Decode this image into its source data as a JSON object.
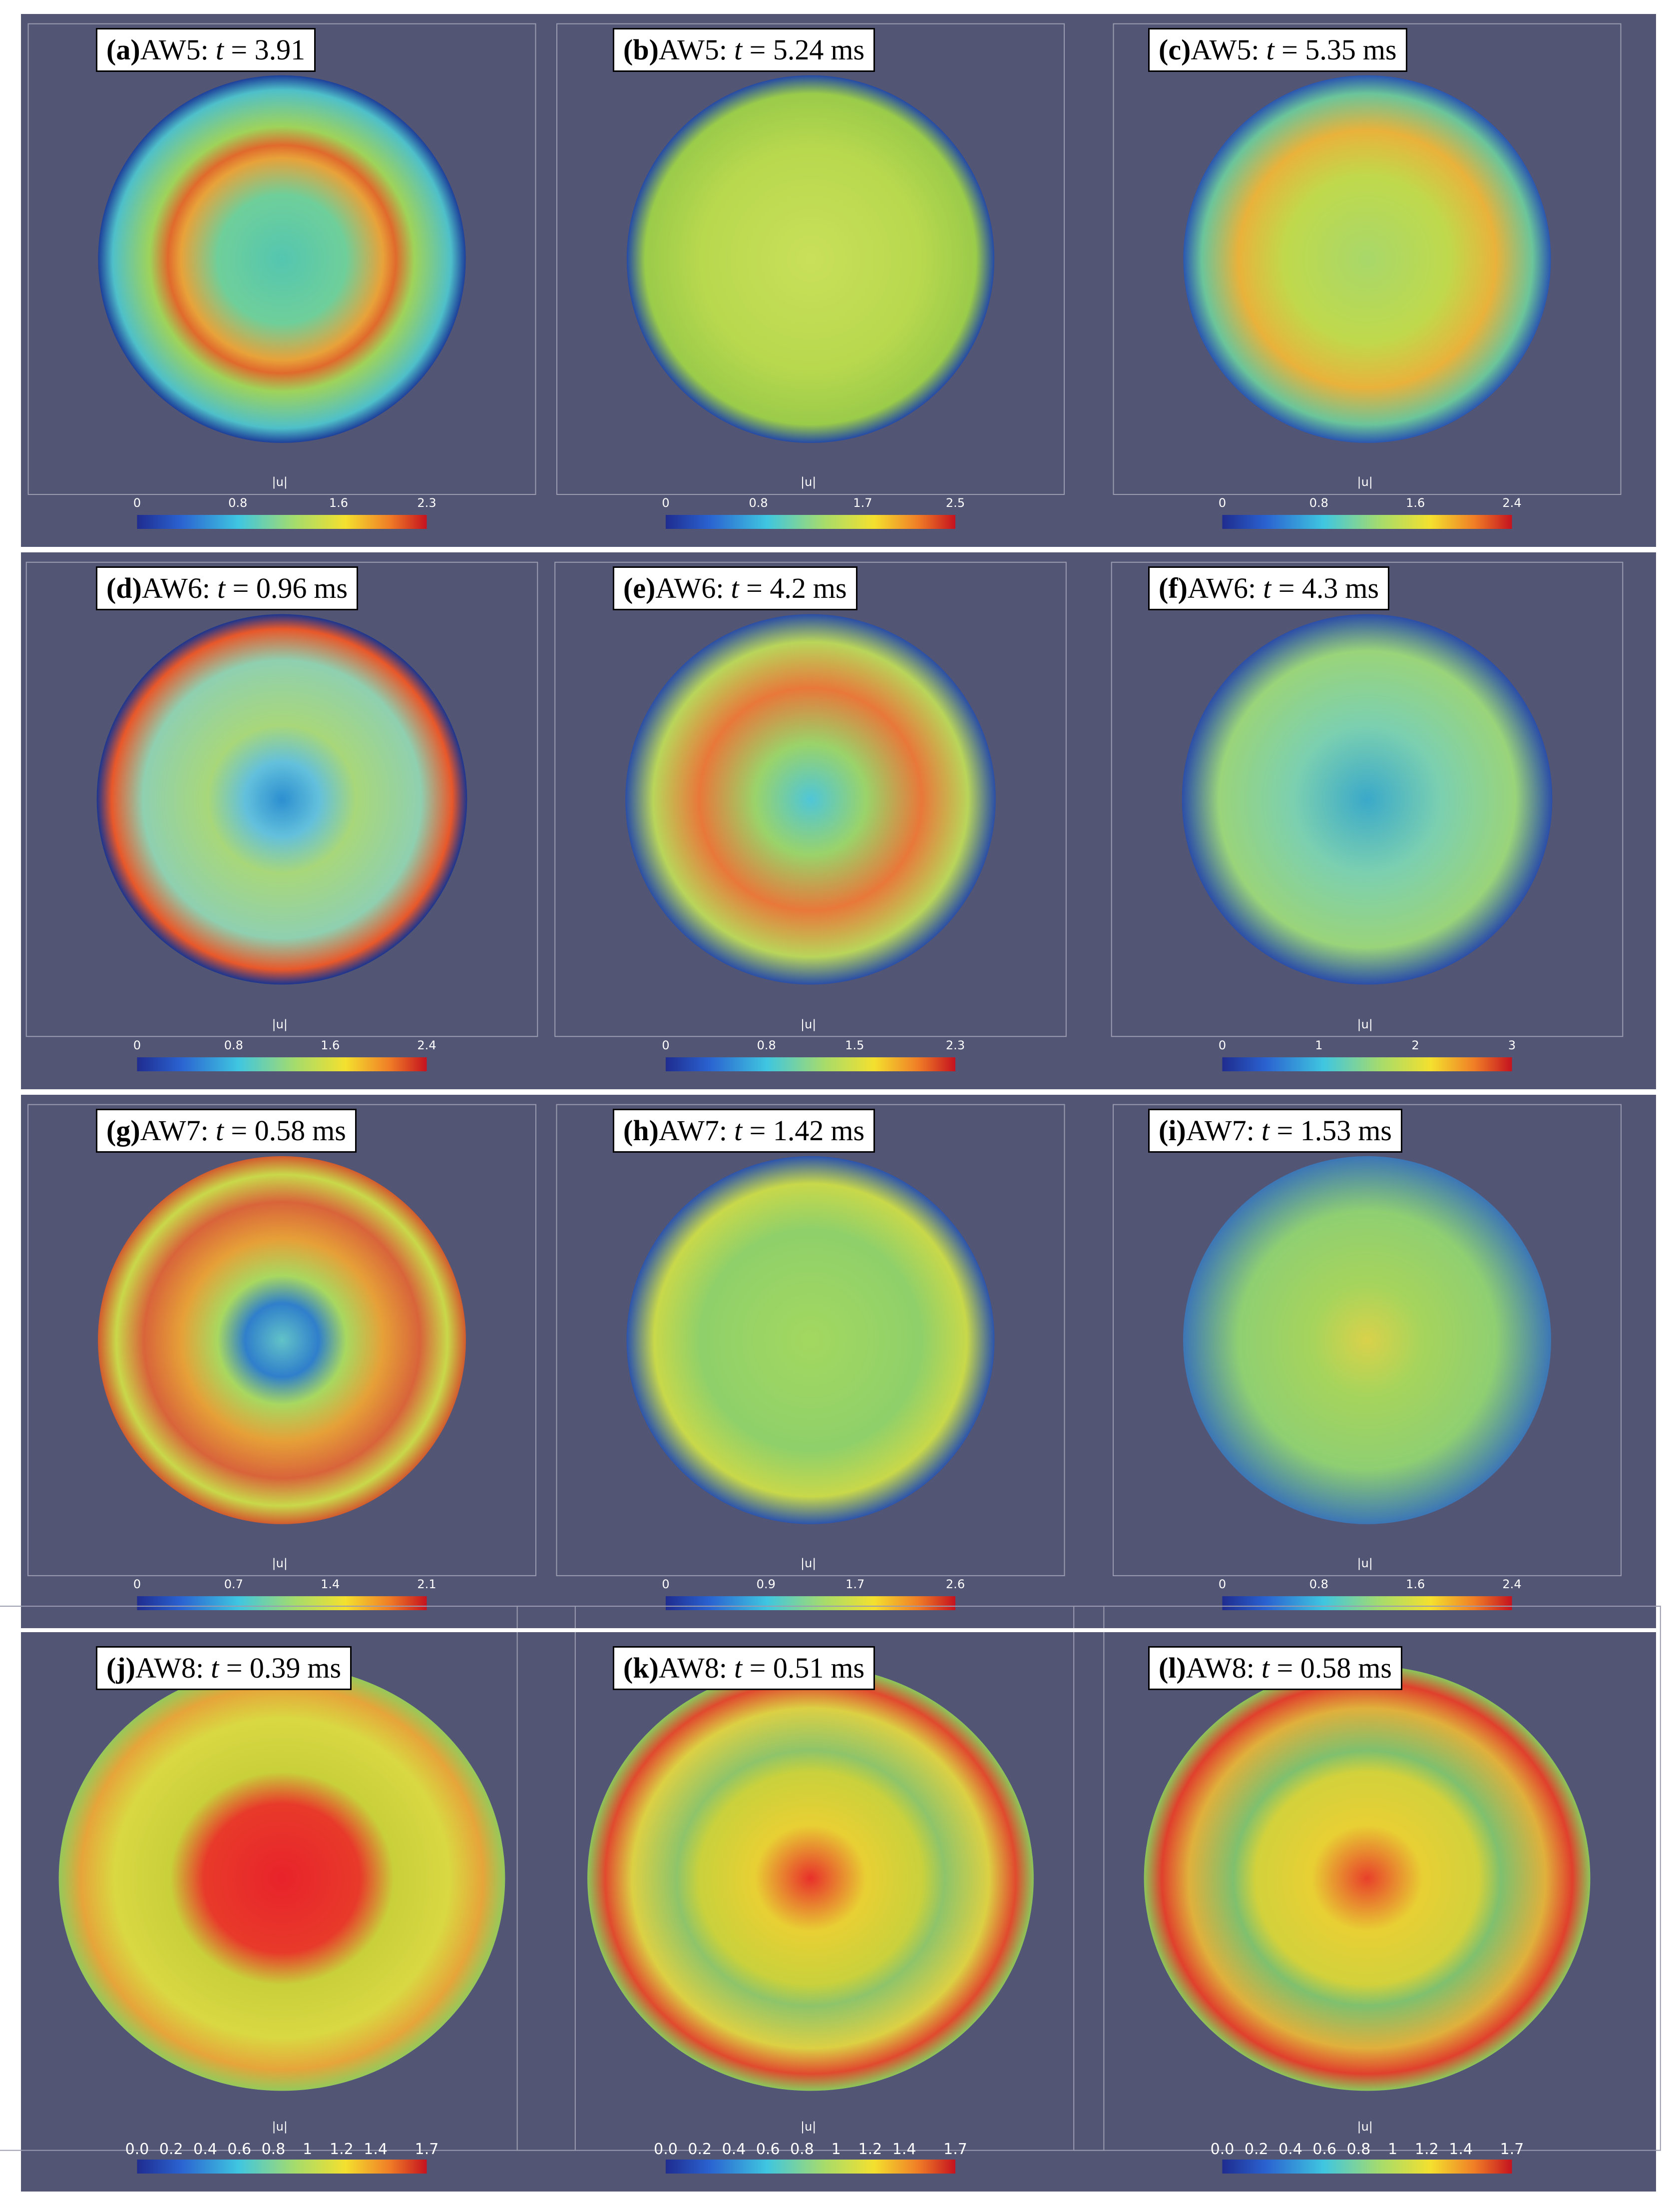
{
  "panels": [
    {
      "tag": "(a)",
      "name": "AW5:",
      "var": "t",
      "eq": "= 3.91",
      "colorbar": {
        "title": "|u|",
        "ticks": [
          "0",
          "0.8",
          "1.6",
          "2.3"
        ]
      }
    },
    {
      "tag": "(b)",
      "name": "AW5:",
      "var": "t",
      "eq": "= 5.24",
      "unit": "ms",
      "colorbar": {
        "title": "|u|",
        "ticks": [
          "0",
          "0.8",
          "1.7",
          "2.5"
        ]
      }
    },
    {
      "tag": "(c)",
      "name": "AW5:",
      "var": "t",
      "eq": "= 5.35",
      "unit": "ms",
      "colorbar": {
        "title": "|u|",
        "ticks": [
          "0",
          "0.8",
          "1.6",
          "2.4"
        ]
      }
    },
    {
      "tag": "(d)",
      "name": "AW6:",
      "var": "t",
      "eq": "= 0.96",
      "unit": "ms",
      "colorbar": {
        "title": "|u|",
        "ticks": [
          "0",
          "0.8",
          "1.6",
          "2.4"
        ]
      }
    },
    {
      "tag": "(e)",
      "name": "AW6:",
      "var": "t",
      "eq": "= 4.2",
      "unit": "ms",
      "colorbar": {
        "title": "|u|",
        "ticks": [
          "0",
          "0.8",
          "1.5",
          "2.3"
        ]
      }
    },
    {
      "tag": "(f)",
      "name": "AW6:",
      "var": "t",
      "eq": "= 4.3",
      "unit": "ms",
      "colorbar": {
        "title": "|u|",
        "ticks": [
          "0",
          "1",
          "2",
          "3"
        ]
      }
    },
    {
      "tag": "(g)",
      "name": "AW7:",
      "var": "t",
      "eq": "= 0.58",
      "unit": "ms",
      "colorbar": {
        "title": "|u|",
        "ticks": [
          "0",
          "0.7",
          "1.4",
          "2.1"
        ]
      }
    },
    {
      "tag": "(h)",
      "name": "AW7:",
      "var": "t",
      "eq": "= 1.42",
      "unit": "ms",
      "colorbar": {
        "title": "|u|",
        "ticks": [
          "0",
          "0.9",
          "1.7",
          "2.6"
        ]
      }
    },
    {
      "tag": "(i)",
      "name": "AW7:",
      "var": "t",
      "eq": "= 1.53",
      "unit": "ms",
      "colorbar": {
        "title": "|u|",
        "ticks": [
          "0",
          "0.8",
          "1.6",
          "2.4"
        ]
      }
    },
    {
      "tag": "(j)",
      "name": "AW8:",
      "var": "t",
      "eq": "= 0.39",
      "unit": "ms",
      "colorbar": {
        "title": "|u|",
        "ticks": [
          "0.0",
          "0.2",
          "0.4",
          "0.6",
          "0.8",
          "1",
          "1.2",
          "1.4",
          "1.7"
        ]
      }
    },
    {
      "tag": "(k)",
      "name": "AW8:",
      "var": "t",
      "eq": "= 0.51",
      "unit": "ms",
      "colorbar": {
        "title": "|u|",
        "ticks": [
          "0.0",
          "0.2",
          "0.4",
          "0.6",
          "0.8",
          "1",
          "1.2",
          "1.4",
          "1.7"
        ]
      }
    },
    {
      "tag": "(l)",
      "name": "AW8:",
      "var": "t",
      "eq": "= 0.58",
      "unit": "ms",
      "colorbar": {
        "title": "|u|",
        "ticks": [
          "0.0",
          "0.2",
          "0.4",
          "0.6",
          "0.8",
          "1",
          "1.2",
          "1.4",
          "1.7"
        ]
      }
    }
  ]
}
